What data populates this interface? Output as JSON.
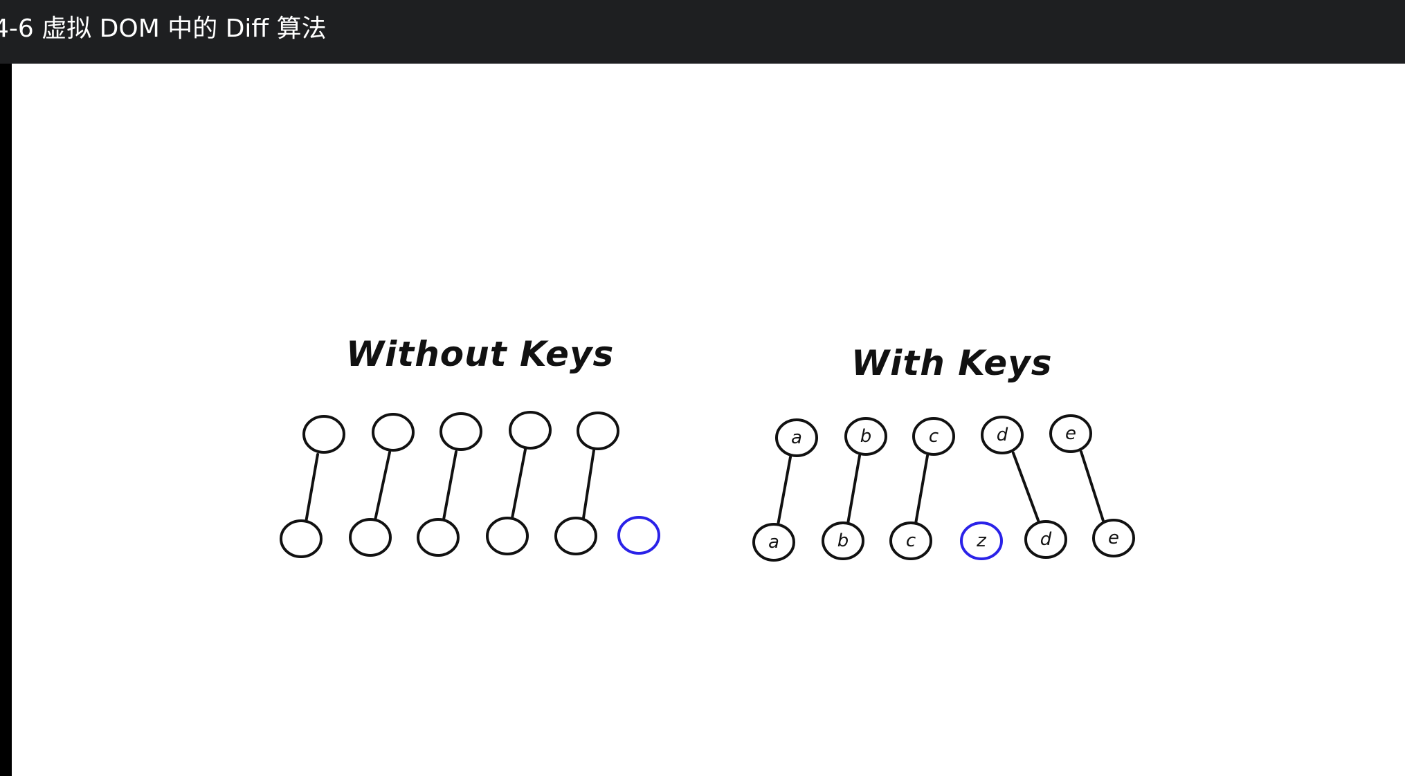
{
  "window": {
    "title": "4-6 虚拟 DOM 中的 Diff 算法"
  },
  "diagram": {
    "left_panel": {
      "title": "Without Keys",
      "top_nodes": [
        "",
        "",
        "",
        "",
        ""
      ],
      "bottom_nodes": [
        "",
        "",
        "",
        "",
        "",
        ""
      ],
      "new_node_index": 5
    },
    "right_panel": {
      "title": "With Keys",
      "top_nodes": [
        "a",
        "b",
        "c",
        "d",
        "e"
      ],
      "bottom_nodes": [
        "a",
        "b",
        "c",
        "z",
        "d",
        "e"
      ],
      "new_node_index": 3
    },
    "colors": {
      "stroke": "#111111",
      "new_node": "#2a22e8"
    }
  }
}
